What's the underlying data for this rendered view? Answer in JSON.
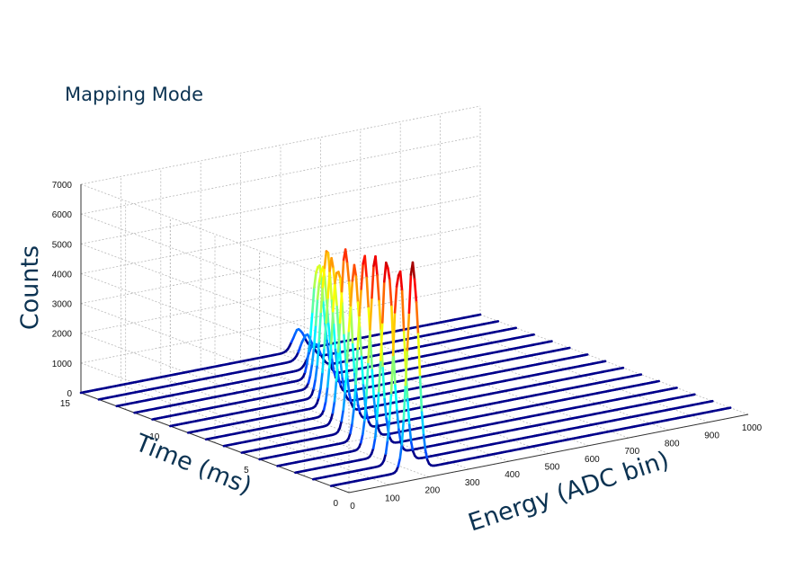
{
  "chart_data": {
    "type": "line",
    "subtype": "3d-waterfall",
    "title": "Mapping Mode",
    "xlabel": "Energy (ADC bin)",
    "ylabel": "Time (ms)",
    "zlabel": "Counts",
    "xlim": [
      0,
      1000
    ],
    "ylim": [
      0,
      15
    ],
    "zlim": [
      0,
      7000
    ],
    "x_ticks": [
      0,
      100,
      200,
      300,
      400,
      500,
      600,
      700,
      800,
      900,
      1000
    ],
    "y_ticks": [
      0,
      5,
      10,
      15
    ],
    "z_ticks": [
      0,
      1000,
      2000,
      3000,
      4000,
      5000,
      6000,
      7000
    ],
    "grid": true,
    "colormap": "jet",
    "line_color": "#00008b",
    "series": [
      {
        "time": 1,
        "peak_energy": 205,
        "peak_counts": 6850
      },
      {
        "time": 2,
        "peak_energy": 215,
        "peak_counts": 6500
      },
      {
        "time": 3,
        "peak_energy": 230,
        "peak_counts": 6500
      },
      {
        "time": 4,
        "peak_energy": 245,
        "peak_counts": 6250
      },
      {
        "time": 5,
        "peak_energy": 262,
        "peak_counts": 6000
      },
      {
        "time": 6,
        "peak_energy": 282,
        "peak_counts": 5400
      },
      {
        "time": 7,
        "peak_energy": 305,
        "peak_counts": 5700
      },
      {
        "time": 8,
        "peak_energy": 330,
        "peak_counts": 4900
      },
      {
        "time": 9,
        "peak_energy": 360,
        "peak_counts": 4800
      },
      {
        "time": 10,
        "peak_energy": 392,
        "peak_counts": 4800
      },
      {
        "time": 11,
        "peak_energy": 425,
        "peak_counts": 4000
      },
      {
        "time": 12,
        "peak_energy": 460,
        "peak_counts": 3800
      },
      {
        "time": 13,
        "peak_energy": 495,
        "peak_counts": 800
      },
      {
        "time": 14,
        "peak_energy": 520,
        "peak_counts": 800
      },
      {
        "time": 15,
        "peak_energy": 545,
        "peak_counts": 700
      }
    ]
  }
}
